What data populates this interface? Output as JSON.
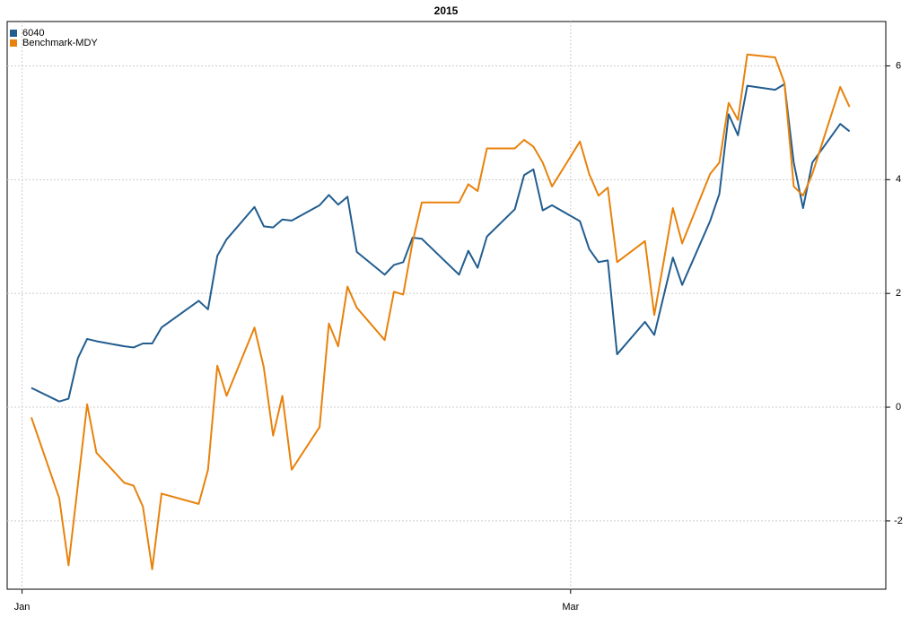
{
  "chart_data": {
    "type": "line",
    "title": "2015",
    "x": [
      2,
      5,
      6,
      7,
      8,
      9,
      12,
      13,
      14,
      15,
      16,
      20,
      21,
      22,
      23,
      26,
      27,
      28,
      29,
      30,
      33,
      34,
      35,
      36,
      37,
      40,
      41,
      42,
      43,
      44,
      48,
      49,
      50,
      51,
      54,
      55,
      56,
      57,
      58,
      61,
      62,
      63,
      64,
      65,
      68,
      69,
      70,
      71,
      72,
      75,
      76,
      77,
      78,
      79,
      82,
      83,
      84,
      85,
      86,
      89,
      90
    ],
    "series": [
      {
        "name": "6040",
        "color": "#225d8f",
        "values": [
          0.34,
          0.1,
          0.15,
          0.86,
          1.2,
          1.16,
          1.07,
          1.05,
          1.12,
          1.12,
          1.4,
          1.87,
          1.72,
          2.66,
          2.95,
          3.52,
          3.18,
          3.16,
          3.3,
          3.28,
          3.55,
          3.73,
          3.56,
          3.7,
          2.73,
          2.33,
          2.5,
          2.55,
          2.98,
          2.96,
          2.33,
          2.75,
          2.45,
          3.0,
          3.48,
          4.08,
          4.18,
          3.46,
          3.55,
          3.27,
          2.78,
          2.55,
          2.58,
          0.93,
          1.5,
          1.27,
          1.95,
          2.63,
          2.15,
          3.27,
          3.75,
          5.15,
          4.78,
          5.65,
          5.58,
          5.68,
          4.3,
          3.5,
          4.3,
          4.98,
          4.85
        ]
      },
      {
        "name": "Benchmark-MDY",
        "color": "#e8820c",
        "values": [
          -0.18,
          -1.6,
          -2.78,
          -1.37,
          0.05,
          -0.8,
          -1.33,
          -1.38,
          -1.75,
          -2.85,
          -1.52,
          -1.7,
          -1.1,
          0.73,
          0.2,
          1.4,
          0.7,
          -0.5,
          0.2,
          -1.1,
          -0.35,
          1.47,
          1.07,
          2.12,
          1.75,
          1.18,
          2.03,
          1.98,
          2.9,
          3.6,
          3.6,
          3.92,
          3.8,
          4.55,
          4.55,
          4.7,
          4.58,
          4.3,
          3.88,
          4.67,
          4.1,
          3.72,
          3.86,
          2.55,
          2.92,
          1.62,
          2.55,
          3.5,
          2.88,
          4.1,
          4.3,
          5.35,
          5.05,
          6.2,
          6.15,
          5.7,
          3.88,
          3.72,
          4.1,
          5.63,
          5.28
        ]
      }
    ],
    "xlim": [
      -0.6,
      93.9
    ],
    "xticks": [
      {
        "value": 1,
        "label": "Jan"
      },
      {
        "value": 60,
        "label": "Mar"
      }
    ],
    "ylim": [
      -3.2,
      6.78
    ],
    "yticks": [
      -2,
      0,
      2,
      4,
      6
    ],
    "grid": true,
    "legend": "top-left"
  }
}
